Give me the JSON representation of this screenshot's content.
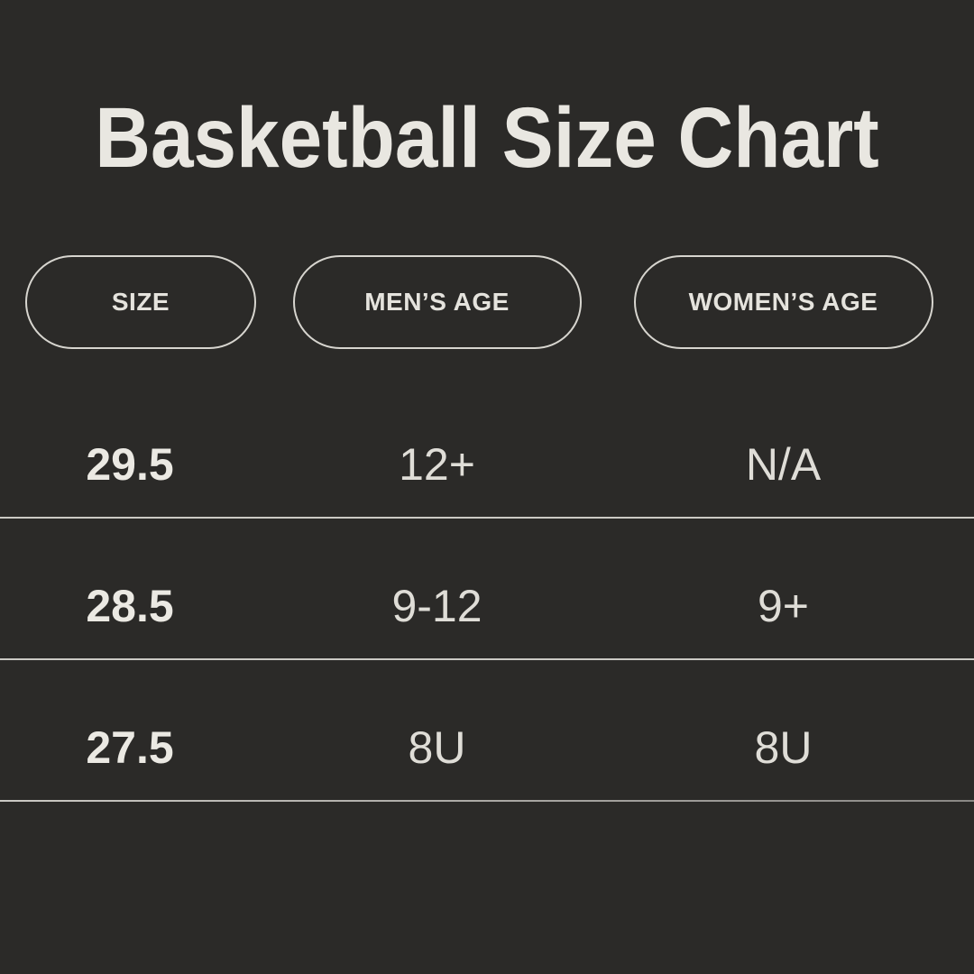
{
  "colors": {
    "background": "#2b2a28",
    "title": "#e9e7e1",
    "pill_border": "#d7d5cf",
    "pill_text": "#e5e3dd",
    "cell_bold": "#ebe9e3",
    "cell_regular": "#dfddd7",
    "divider": "#cbc9c4",
    "divider_fade": "#8a8885"
  },
  "chart_data": {
    "type": "table",
    "title": "Basketball Size Chart",
    "columns": [
      "SIZE",
      "MEN’S AGE",
      "WOMEN’S AGE"
    ],
    "rows": [
      [
        "29.5",
        "12+",
        "N/A"
      ],
      [
        "28.5",
        "9-12",
        "9+"
      ],
      [
        "27.5",
        "8U",
        "8U"
      ]
    ]
  }
}
